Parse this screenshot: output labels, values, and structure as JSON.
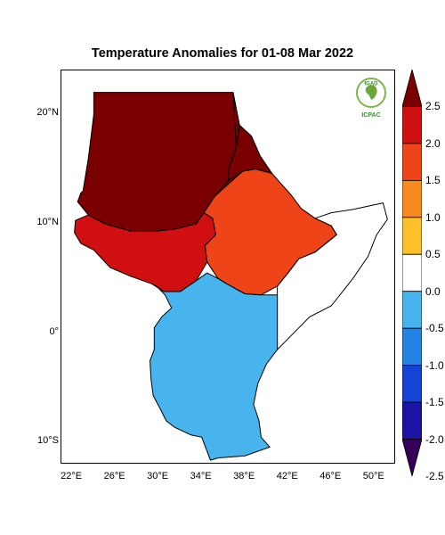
{
  "title": "Temperature Anomalies for 01-08 Mar 2022",
  "map": {
    "projection": "equirectangular",
    "lon_range": [
      21,
      52
    ],
    "lat_range": [
      -12,
      24
    ],
    "lat_ticks": [
      {
        "value": 20,
        "label": "20°N"
      },
      {
        "value": 10,
        "label": "10°N"
      },
      {
        "value": 0,
        "label": "0°"
      },
      {
        "value": -10,
        "label": "10°S"
      }
    ],
    "lon_ticks": [
      {
        "value": 22,
        "label": "22°E"
      },
      {
        "value": 26,
        "label": "26°E"
      },
      {
        "value": 30,
        "label": "30°E"
      },
      {
        "value": 34,
        "label": "34°E"
      },
      {
        "value": 38,
        "label": "38°E"
      },
      {
        "value": 42,
        "label": "42°E"
      },
      {
        "value": 46,
        "label": "46°E"
      },
      {
        "value": 50,
        "label": "50°E"
      }
    ],
    "ocean_color": "#ffffff",
    "border_color": "#000000"
  },
  "legend": {
    "levels": [
      "2.5",
      "2.0",
      "1.5",
      "1.0",
      "0.5",
      "0.0",
      "-0.5",
      "-1.0",
      "-1.5",
      "-2.0",
      "-2.5"
    ],
    "colors": [
      "#7a0000",
      "#d01010",
      "#ee4418",
      "#f78a1e",
      "#fbc02a",
      "#ffffff",
      "#47b4ee",
      "#2384e6",
      "#1544d4",
      "#1c12a4",
      "#360058"
    ],
    "extend": "both"
  },
  "logo": {
    "top_text": "IGAD",
    "bottom_text": "ICPAC",
    "color": "#3a8a2e"
  },
  "chart_data": {
    "type": "heatmap",
    "variable": "Temperature Anomalies",
    "period": "01-08 Mar 2022",
    "color_levels": [
      -2.5,
      -2.0,
      -1.5,
      -1.0,
      -0.5,
      0.0,
      0.5,
      1.0,
      1.5,
      2.0,
      2.5
    ],
    "regions": [
      {
        "area": [
          [
            23,
            13
          ],
          [
            23.5,
            16
          ],
          [
            24,
            20
          ],
          [
            24,
            22
          ],
          [
            25,
            22
          ],
          [
            31.5,
            22
          ],
          [
            34,
            22
          ],
          [
            36.9,
            22
          ],
          [
            37.5,
            19
          ],
          [
            37.2,
            17
          ],
          [
            36.5,
            15
          ],
          [
            36.5,
            14
          ],
          [
            35.2,
            12.5
          ],
          [
            34.2,
            11
          ],
          [
            33.5,
            10
          ],
          [
            31.5,
            9.5
          ],
          [
            29.5,
            9.3
          ],
          [
            27.5,
            9.3
          ],
          [
            25,
            10
          ],
          [
            23.5,
            10.8
          ],
          [
            22.5,
            12
          ],
          [
            22.8,
            12.8
          ]
        ],
        "value": 3.0
      },
      {
        "area": [
          [
            22.3,
            10.3
          ],
          [
            23.5,
            10.8
          ],
          [
            25,
            10
          ],
          [
            27.5,
            9.3
          ],
          [
            29.5,
            9.3
          ],
          [
            31.5,
            9.5
          ],
          [
            33.5,
            10
          ],
          [
            34.2,
            11
          ],
          [
            35,
            10.5
          ],
          [
            35.3,
            9
          ],
          [
            34.3,
            8
          ],
          [
            34.5,
            6.5
          ],
          [
            33.5,
            4.8
          ],
          [
            32,
            3.8
          ],
          [
            30.5,
            3.8
          ],
          [
            29.4,
            4.5
          ],
          [
            27.4,
            5.2
          ],
          [
            25.5,
            6
          ],
          [
            24,
            7.6
          ],
          [
            22.8,
            8.2
          ],
          [
            22.2,
            9.2
          ]
        ],
        "value": 2.2
      },
      {
        "area": [
          [
            35.2,
            12.5
          ],
          [
            36.5,
            14
          ],
          [
            37.8,
            14.8
          ],
          [
            39,
            15
          ],
          [
            40.5,
            14.6
          ],
          [
            42.3,
            12.6
          ],
          [
            43.2,
            11.4
          ],
          [
            44.5,
            10.5
          ],
          [
            46,
            9.8
          ],
          [
            46.5,
            9
          ],
          [
            44.5,
            7.4
          ],
          [
            43,
            6.8
          ],
          [
            42,
            5.5
          ],
          [
            41,
            4.3
          ],
          [
            39.5,
            3.5
          ],
          [
            38,
            3.6
          ],
          [
            36.5,
            4.4
          ],
          [
            35.5,
            5
          ],
          [
            34.5,
            6.5
          ],
          [
            34.3,
            8
          ],
          [
            35.3,
            9
          ],
          [
            35,
            10.5
          ],
          [
            34.2,
            11
          ]
        ],
        "value": 1.7
      },
      {
        "area": [
          [
            37.2,
            17
          ],
          [
            37.5,
            19
          ],
          [
            38.6,
            18
          ],
          [
            39.4,
            16.2
          ],
          [
            40.5,
            14.6
          ],
          [
            39,
            15
          ],
          [
            37.8,
            14.8
          ],
          [
            36.5,
            14
          ],
          [
            36.5,
            15
          ]
        ],
        "value": 2.2
      },
      {
        "area": [
          [
            44.5,
            10.5
          ],
          [
            46,
            11
          ],
          [
            48,
            11.3
          ],
          [
            50.8,
            11.9
          ],
          [
            51.2,
            10.4
          ],
          [
            50.2,
            9
          ],
          [
            49.4,
            7
          ],
          [
            48,
            5
          ],
          [
            46,
            2.5
          ],
          [
            44,
            1.5
          ],
          [
            42.5,
            0
          ],
          [
            41,
            -1.5
          ],
          [
            41,
            -0.5
          ],
          [
            41,
            1.5
          ],
          [
            41,
            3.5
          ],
          [
            41,
            4.3
          ],
          [
            42,
            5.5
          ],
          [
            43,
            6.8
          ],
          [
            44.5,
            7.4
          ],
          [
            46.5,
            9
          ],
          [
            46,
            9.8
          ]
        ],
        "value": 0.0
      },
      {
        "area": [
          [
            29.4,
            4.5
          ],
          [
            30.5,
            3.8
          ],
          [
            32,
            3.8
          ],
          [
            33.5,
            4.8
          ],
          [
            34.5,
            5.5
          ],
          [
            35.5,
            5
          ],
          [
            36.5,
            4.4
          ],
          [
            38,
            3.6
          ],
          [
            39.5,
            3.5
          ],
          [
            41,
            3.5
          ],
          [
            41,
            1.5
          ],
          [
            41,
            -0.5
          ],
          [
            41,
            -1.5
          ],
          [
            40,
            -2.8
          ],
          [
            39.2,
            -4.6
          ],
          [
            38.8,
            -6.5
          ],
          [
            39.3,
            -8
          ],
          [
            39.5,
            -9.5
          ],
          [
            40.3,
            -10.4
          ],
          [
            38,
            -11.2
          ],
          [
            35.5,
            -11.4
          ],
          [
            34.8,
            -11.6
          ],
          [
            34,
            -9.5
          ],
          [
            33,
            -9.3
          ],
          [
            31.5,
            -8.6
          ],
          [
            30.7,
            -8
          ],
          [
            30.2,
            -7
          ],
          [
            29.5,
            -5.7
          ],
          [
            29.3,
            -4.2
          ],
          [
            29.2,
            -2.5
          ],
          [
            29.6,
            -1.5
          ],
          [
            29.6,
            0.5
          ],
          [
            30.3,
            1.5
          ],
          [
            31.2,
            2.3
          ],
          [
            30.6,
            3.5
          ],
          [
            29.8,
            4.3
          ]
        ],
        "value": -0.6
      },
      {
        "area": [
          [
            35.2,
            12.5
          ],
          [
            36.5,
            14
          ],
          [
            36.5,
            15
          ],
          [
            37.2,
            17
          ],
          [
            36.9,
            22
          ],
          [
            37.5,
            19
          ],
          [
            38.6,
            18
          ],
          [
            39.4,
            16.2
          ],
          [
            40.5,
            14.6
          ],
          [
            39,
            15
          ],
          [
            37.8,
            14.8
          ]
        ],
        "value": 2.5
      }
    ]
  }
}
